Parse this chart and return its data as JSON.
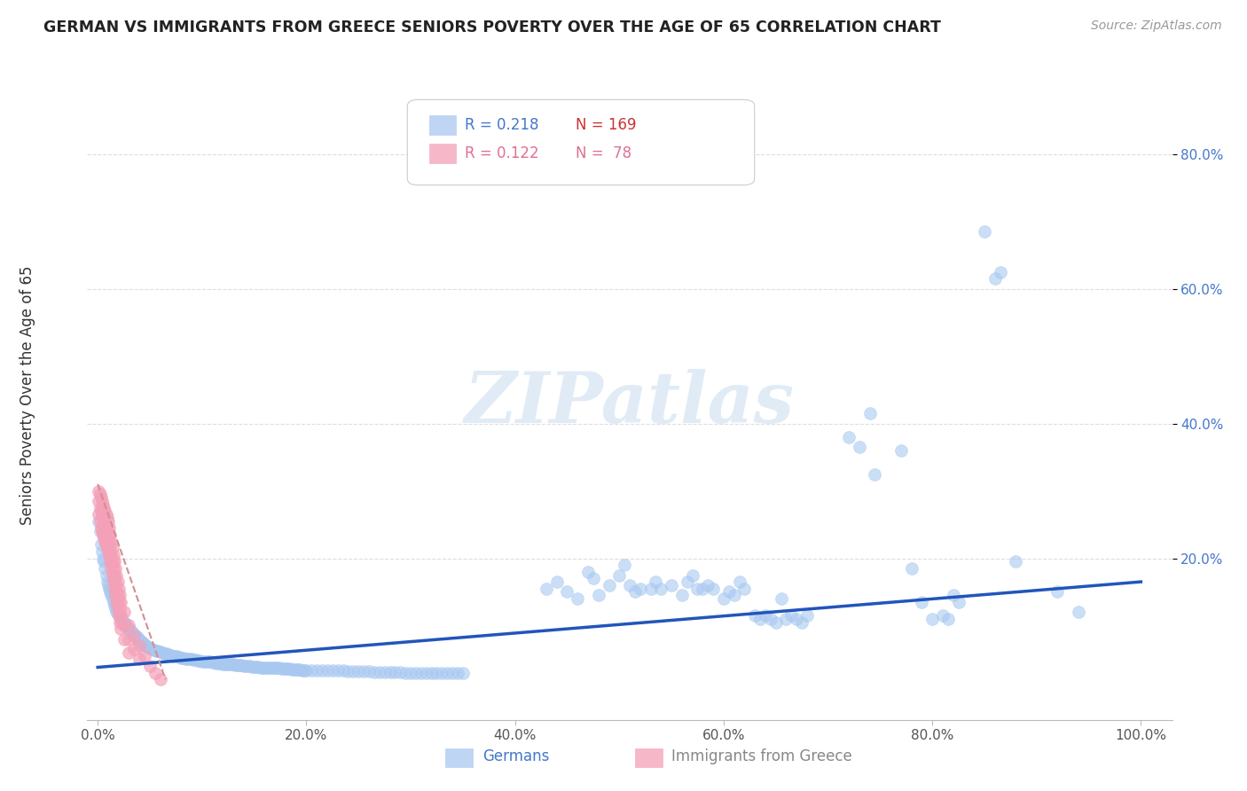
{
  "title": "GERMAN VS IMMIGRANTS FROM GREECE SENIORS POVERTY OVER THE AGE OF 65 CORRELATION CHART",
  "source": "Source: ZipAtlas.com",
  "ylabel": "Seniors Poverty Over the Age of 65",
  "x_tick_labels": [
    "0.0%",
    "20.0%",
    "40.0%",
    "60.0%",
    "80.0%",
    "100.0%"
  ],
  "x_tick_values": [
    0.0,
    0.2,
    0.4,
    0.6,
    0.8,
    1.0
  ],
  "y_tick_labels": [
    "20.0%",
    "40.0%",
    "60.0%",
    "80.0%"
  ],
  "y_tick_values": [
    0.2,
    0.4,
    0.6,
    0.8
  ],
  "xlim": [
    -0.01,
    1.03
  ],
  "ylim": [
    -0.04,
    0.9
  ],
  "watermark": "ZIPatlas",
  "blue_color": "#A8C8F0",
  "pink_color": "#F4A0B8",
  "blue_line_color": "#2255BB",
  "pink_line_color": "#D09090",
  "grid_color": "#DDDDDD",
  "blue_scatter": [
    [
      0.001,
      0.255
    ],
    [
      0.002,
      0.24
    ],
    [
      0.003,
      0.22
    ],
    [
      0.004,
      0.21
    ],
    [
      0.005,
      0.2
    ],
    [
      0.006,
      0.195
    ],
    [
      0.007,
      0.185
    ],
    [
      0.008,
      0.175
    ],
    [
      0.009,
      0.165
    ],
    [
      0.01,
      0.16
    ],
    [
      0.011,
      0.155
    ],
    [
      0.012,
      0.15
    ],
    [
      0.013,
      0.145
    ],
    [
      0.014,
      0.14
    ],
    [
      0.015,
      0.135
    ],
    [
      0.016,
      0.13
    ],
    [
      0.017,
      0.125
    ],
    [
      0.018,
      0.12
    ],
    [
      0.019,
      0.118
    ],
    [
      0.02,
      0.115
    ],
    [
      0.021,
      0.113
    ],
    [
      0.022,
      0.11
    ],
    [
      0.023,
      0.108
    ],
    [
      0.024,
      0.106
    ],
    [
      0.025,
      0.105
    ],
    [
      0.026,
      0.103
    ],
    [
      0.027,
      0.1
    ],
    [
      0.028,
      0.098
    ],
    [
      0.029,
      0.096
    ],
    [
      0.03,
      0.095
    ],
    [
      0.031,
      0.093
    ],
    [
      0.032,
      0.091
    ],
    [
      0.033,
      0.09
    ],
    [
      0.034,
      0.088
    ],
    [
      0.035,
      0.087
    ],
    [
      0.036,
      0.085
    ],
    [
      0.037,
      0.083
    ],
    [
      0.038,
      0.082
    ],
    [
      0.039,
      0.08
    ],
    [
      0.04,
      0.079
    ],
    [
      0.041,
      0.077
    ],
    [
      0.042,
      0.076
    ],
    [
      0.043,
      0.074
    ],
    [
      0.044,
      0.073
    ],
    [
      0.045,
      0.072
    ],
    [
      0.046,
      0.07
    ],
    [
      0.047,
      0.069
    ],
    [
      0.048,
      0.068
    ],
    [
      0.049,
      0.067
    ],
    [
      0.05,
      0.066
    ],
    [
      0.052,
      0.065
    ],
    [
      0.054,
      0.064
    ],
    [
      0.056,
      0.063
    ],
    [
      0.058,
      0.062
    ],
    [
      0.06,
      0.061
    ],
    [
      0.062,
      0.06
    ],
    [
      0.064,
      0.059
    ],
    [
      0.066,
      0.058
    ],
    [
      0.068,
      0.057
    ],
    [
      0.07,
      0.056
    ],
    [
      0.072,
      0.055
    ],
    [
      0.074,
      0.054
    ],
    [
      0.076,
      0.054
    ],
    [
      0.078,
      0.053
    ],
    [
      0.08,
      0.052
    ],
    [
      0.082,
      0.052
    ],
    [
      0.084,
      0.051
    ],
    [
      0.086,
      0.051
    ],
    [
      0.088,
      0.05
    ],
    [
      0.09,
      0.05
    ],
    [
      0.092,
      0.049
    ],
    [
      0.094,
      0.049
    ],
    [
      0.096,
      0.048
    ],
    [
      0.098,
      0.048
    ],
    [
      0.1,
      0.047
    ],
    [
      0.102,
      0.047
    ],
    [
      0.104,
      0.046
    ],
    [
      0.106,
      0.046
    ],
    [
      0.108,
      0.046
    ],
    [
      0.11,
      0.045
    ],
    [
      0.112,
      0.045
    ],
    [
      0.114,
      0.044
    ],
    [
      0.116,
      0.044
    ],
    [
      0.118,
      0.044
    ],
    [
      0.12,
      0.043
    ],
    [
      0.122,
      0.043
    ],
    [
      0.124,
      0.043
    ],
    [
      0.126,
      0.042
    ],
    [
      0.128,
      0.042
    ],
    [
      0.13,
      0.042
    ],
    [
      0.132,
      0.041
    ],
    [
      0.134,
      0.041
    ],
    [
      0.136,
      0.041
    ],
    [
      0.138,
      0.041
    ],
    [
      0.14,
      0.04
    ],
    [
      0.142,
      0.04
    ],
    [
      0.144,
      0.04
    ],
    [
      0.146,
      0.04
    ],
    [
      0.148,
      0.039
    ],
    [
      0.15,
      0.039
    ],
    [
      0.152,
      0.039
    ],
    [
      0.154,
      0.039
    ],
    [
      0.156,
      0.038
    ],
    [
      0.158,
      0.038
    ],
    [
      0.16,
      0.038
    ],
    [
      0.162,
      0.038
    ],
    [
      0.164,
      0.038
    ],
    [
      0.166,
      0.037
    ],
    [
      0.168,
      0.037
    ],
    [
      0.17,
      0.037
    ],
    [
      0.172,
      0.037
    ],
    [
      0.174,
      0.037
    ],
    [
      0.176,
      0.036
    ],
    [
      0.178,
      0.036
    ],
    [
      0.18,
      0.036
    ],
    [
      0.182,
      0.036
    ],
    [
      0.184,
      0.036
    ],
    [
      0.186,
      0.035
    ],
    [
      0.188,
      0.035
    ],
    [
      0.19,
      0.035
    ],
    [
      0.192,
      0.035
    ],
    [
      0.194,
      0.035
    ],
    [
      0.196,
      0.034
    ],
    [
      0.198,
      0.034
    ],
    [
      0.2,
      0.034
    ],
    [
      0.205,
      0.034
    ],
    [
      0.21,
      0.034
    ],
    [
      0.215,
      0.033
    ],
    [
      0.22,
      0.033
    ],
    [
      0.225,
      0.033
    ],
    [
      0.23,
      0.033
    ],
    [
      0.235,
      0.033
    ],
    [
      0.24,
      0.032
    ],
    [
      0.245,
      0.032
    ],
    [
      0.25,
      0.032
    ],
    [
      0.255,
      0.032
    ],
    [
      0.26,
      0.032
    ],
    [
      0.265,
      0.031
    ],
    [
      0.27,
      0.031
    ],
    [
      0.275,
      0.031
    ],
    [
      0.28,
      0.031
    ],
    [
      0.285,
      0.031
    ],
    [
      0.29,
      0.031
    ],
    [
      0.295,
      0.03
    ],
    [
      0.3,
      0.03
    ],
    [
      0.305,
      0.03
    ],
    [
      0.31,
      0.03
    ],
    [
      0.315,
      0.03
    ],
    [
      0.32,
      0.03
    ],
    [
      0.325,
      0.029
    ],
    [
      0.33,
      0.029
    ],
    [
      0.335,
      0.029
    ],
    [
      0.34,
      0.029
    ],
    [
      0.345,
      0.029
    ],
    [
      0.35,
      0.029
    ],
    [
      0.43,
      0.155
    ],
    [
      0.44,
      0.165
    ],
    [
      0.45,
      0.15
    ],
    [
      0.46,
      0.14
    ],
    [
      0.47,
      0.18
    ],
    [
      0.475,
      0.17
    ],
    [
      0.48,
      0.145
    ],
    [
      0.49,
      0.16
    ],
    [
      0.5,
      0.175
    ],
    [
      0.505,
      0.19
    ],
    [
      0.51,
      0.16
    ],
    [
      0.515,
      0.15
    ],
    [
      0.52,
      0.155
    ],
    [
      0.53,
      0.155
    ],
    [
      0.535,
      0.165
    ],
    [
      0.54,
      0.155
    ],
    [
      0.55,
      0.16
    ],
    [
      0.56,
      0.145
    ],
    [
      0.565,
      0.165
    ],
    [
      0.57,
      0.175
    ],
    [
      0.575,
      0.155
    ],
    [
      0.58,
      0.155
    ],
    [
      0.585,
      0.16
    ],
    [
      0.59,
      0.155
    ],
    [
      0.6,
      0.14
    ],
    [
      0.605,
      0.15
    ],
    [
      0.61,
      0.145
    ],
    [
      0.615,
      0.165
    ],
    [
      0.62,
      0.155
    ],
    [
      0.63,
      0.115
    ],
    [
      0.635,
      0.11
    ],
    [
      0.64,
      0.115
    ],
    [
      0.645,
      0.11
    ],
    [
      0.65,
      0.105
    ],
    [
      0.655,
      0.14
    ],
    [
      0.66,
      0.11
    ],
    [
      0.665,
      0.115
    ],
    [
      0.67,
      0.11
    ],
    [
      0.675,
      0.105
    ],
    [
      0.68,
      0.115
    ],
    [
      0.72,
      0.38
    ],
    [
      0.73,
      0.365
    ],
    [
      0.74,
      0.415
    ],
    [
      0.745,
      0.325
    ],
    [
      0.77,
      0.36
    ],
    [
      0.78,
      0.185
    ],
    [
      0.79,
      0.135
    ],
    [
      0.8,
      0.11
    ],
    [
      0.81,
      0.115
    ],
    [
      0.815,
      0.11
    ],
    [
      0.82,
      0.145
    ],
    [
      0.825,
      0.135
    ],
    [
      0.85,
      0.685
    ],
    [
      0.86,
      0.615
    ],
    [
      0.865,
      0.625
    ],
    [
      0.88,
      0.195
    ],
    [
      0.92,
      0.15
    ],
    [
      0.94,
      0.12
    ]
  ],
  "pink_scatter": [
    [
      0.001,
      0.3
    ],
    [
      0.001,
      0.285
    ],
    [
      0.001,
      0.265
    ],
    [
      0.002,
      0.295
    ],
    [
      0.002,
      0.275
    ],
    [
      0.002,
      0.255
    ],
    [
      0.003,
      0.29
    ],
    [
      0.003,
      0.27
    ],
    [
      0.003,
      0.245
    ],
    [
      0.004,
      0.285
    ],
    [
      0.004,
      0.265
    ],
    [
      0.004,
      0.24
    ],
    [
      0.005,
      0.28
    ],
    [
      0.005,
      0.26
    ],
    [
      0.005,
      0.235
    ],
    [
      0.006,
      0.275
    ],
    [
      0.006,
      0.255
    ],
    [
      0.006,
      0.23
    ],
    [
      0.007,
      0.27
    ],
    [
      0.007,
      0.25
    ],
    [
      0.007,
      0.225
    ],
    [
      0.008,
      0.265
    ],
    [
      0.008,
      0.245
    ],
    [
      0.008,
      0.22
    ],
    [
      0.009,
      0.26
    ],
    [
      0.009,
      0.24
    ],
    [
      0.009,
      0.215
    ],
    [
      0.01,
      0.255
    ],
    [
      0.01,
      0.235
    ],
    [
      0.01,
      0.21
    ],
    [
      0.011,
      0.245
    ],
    [
      0.011,
      0.225
    ],
    [
      0.011,
      0.205
    ],
    [
      0.012,
      0.235
    ],
    [
      0.012,
      0.215
    ],
    [
      0.012,
      0.195
    ],
    [
      0.013,
      0.225
    ],
    [
      0.013,
      0.205
    ],
    [
      0.013,
      0.185
    ],
    [
      0.014,
      0.215
    ],
    [
      0.014,
      0.195
    ],
    [
      0.014,
      0.175
    ],
    [
      0.015,
      0.205
    ],
    [
      0.015,
      0.185
    ],
    [
      0.015,
      0.165
    ],
    [
      0.016,
      0.195
    ],
    [
      0.016,
      0.175
    ],
    [
      0.016,
      0.155
    ],
    [
      0.017,
      0.185
    ],
    [
      0.017,
      0.165
    ],
    [
      0.017,
      0.145
    ],
    [
      0.018,
      0.175
    ],
    [
      0.018,
      0.155
    ],
    [
      0.018,
      0.135
    ],
    [
      0.019,
      0.165
    ],
    [
      0.019,
      0.145
    ],
    [
      0.019,
      0.125
    ],
    [
      0.02,
      0.155
    ],
    [
      0.02,
      0.135
    ],
    [
      0.02,
      0.115
    ],
    [
      0.021,
      0.145
    ],
    [
      0.021,
      0.125
    ],
    [
      0.021,
      0.105
    ],
    [
      0.022,
      0.135
    ],
    [
      0.022,
      0.115
    ],
    [
      0.022,
      0.095
    ],
    [
      0.025,
      0.12
    ],
    [
      0.025,
      0.1
    ],
    [
      0.025,
      0.08
    ],
    [
      0.03,
      0.1
    ],
    [
      0.03,
      0.08
    ],
    [
      0.03,
      0.06
    ],
    [
      0.035,
      0.085
    ],
    [
      0.035,
      0.065
    ],
    [
      0.04,
      0.07
    ],
    [
      0.04,
      0.05
    ],
    [
      0.045,
      0.055
    ],
    [
      0.05,
      0.04
    ],
    [
      0.055,
      0.03
    ],
    [
      0.06,
      0.02
    ]
  ],
  "blue_trendline_x": [
    0.0,
    1.0
  ],
  "blue_trendline_y": [
    0.038,
    0.165
  ],
  "pink_trendline_x": [
    0.0,
    0.065
  ],
  "pink_trendline_y": [
    0.31,
    0.02
  ]
}
